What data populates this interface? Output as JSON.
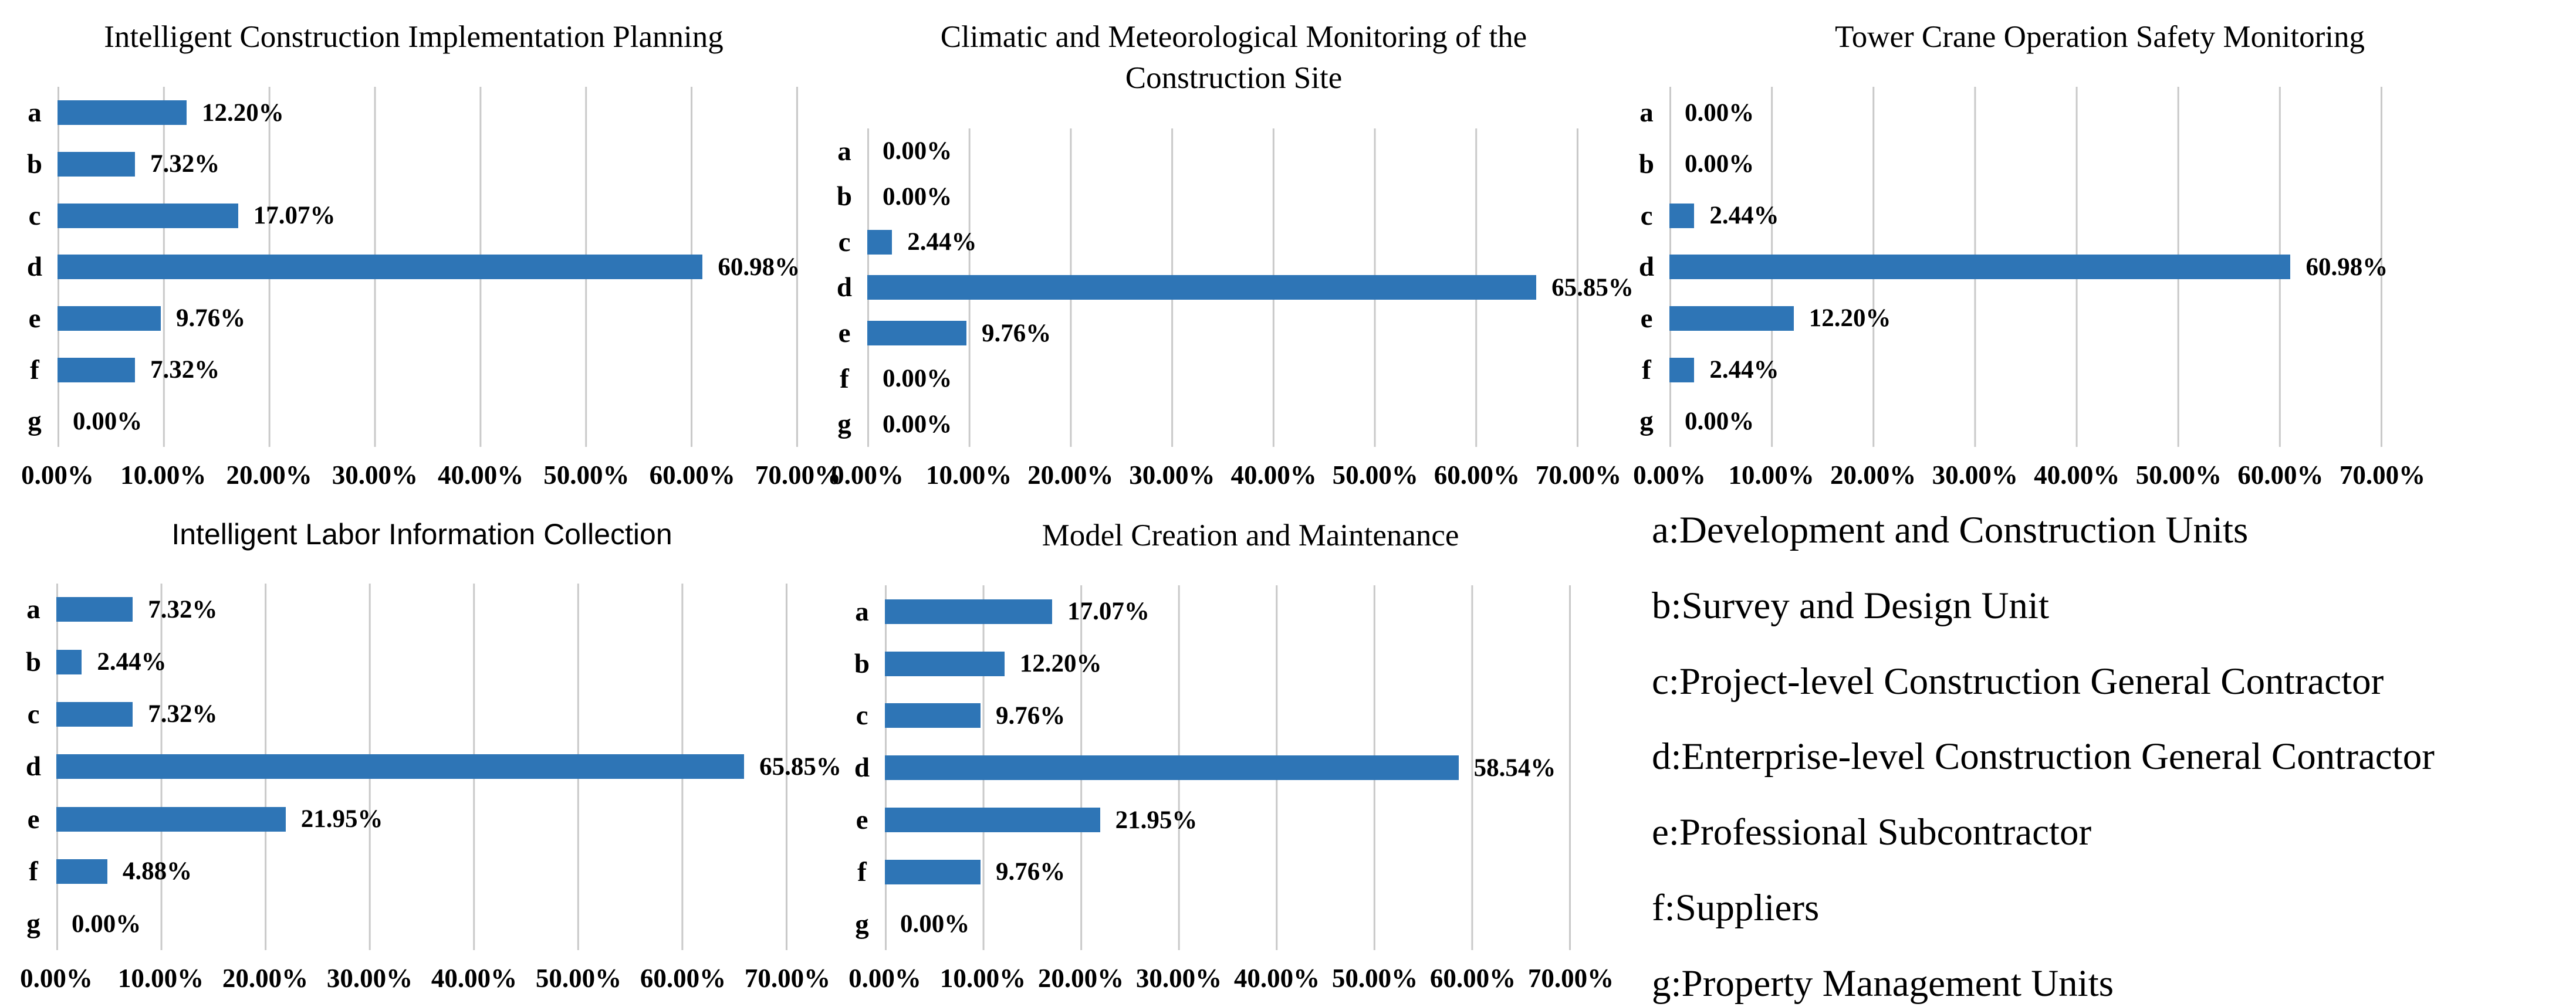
{
  "colors": {
    "bar": "#2E75B6",
    "gridline": "#C9C9C9",
    "text": "#000000",
    "background": "#FFFFFF"
  },
  "legend": {
    "items": [
      "a:Development and Construction Units",
      "b:Survey and Design Unit",
      "c:Project-level Construction General Contractor",
      "d:Enterprise-level Construction General Contractor",
      "e:Professional Subcontractor",
      "f:Suppliers",
      "g:Property Management Units"
    ]
  },
  "chart_data": [
    {
      "type": "bar",
      "orientation": "horizontal",
      "title": "Intelligent Construction Implementation Planning",
      "categories": [
        "a",
        "b",
        "c",
        "d",
        "e",
        "f",
        "g"
      ],
      "values": [
        12.2,
        7.32,
        17.07,
        60.98,
        9.76,
        7.32,
        0.0
      ],
      "value_labels": [
        "12.20%",
        "7.32%",
        "17.07%",
        "60.98%",
        "9.76%",
        "7.32%",
        "0.00%"
      ],
      "xlim": [
        0,
        70
      ],
      "x_tick_labels": [
        "0.00%",
        "10.00%",
        "20.00%",
        "30.00%",
        "40.00%",
        "50.00%",
        "60.00%",
        "70.00%"
      ],
      "grid": true,
      "legend_position": "none",
      "layout": {
        "title_font": "serif",
        "title_lines": [
          "Intelligent Construction Implementation Planning"
        ]
      }
    },
    {
      "type": "bar",
      "orientation": "horizontal",
      "title": "Climatic and Meteorological Monitoring of the Construction Site",
      "categories": [
        "a",
        "b",
        "c",
        "d",
        "e",
        "f",
        "g"
      ],
      "values": [
        0.0,
        0.0,
        2.44,
        65.85,
        9.76,
        0.0,
        0.0
      ],
      "value_labels": [
        "0.00%",
        "0.00%",
        "2.44%",
        "65.85%",
        "9.76%",
        "0.00%",
        "0.00%"
      ],
      "xlim": [
        0,
        70
      ],
      "x_tick_labels": [
        "0.00%",
        "10.00%",
        "20.00%",
        "30.00%",
        "40.00%",
        "50.00%",
        "60.00%",
        "70.00%"
      ],
      "grid": true,
      "legend_position": "none",
      "layout": {
        "title_font": "serif",
        "title_lines": [
          "Climatic and Meteorological Monitoring of the",
          "Construction Site"
        ]
      }
    },
    {
      "type": "bar",
      "orientation": "horizontal",
      "title": "Tower Crane Operation Safety Monitoring",
      "categories": [
        "a",
        "b",
        "c",
        "d",
        "e",
        "f",
        "g"
      ],
      "values": [
        0.0,
        0.0,
        2.44,
        60.98,
        12.2,
        2.44,
        0.0
      ],
      "value_labels": [
        "0.00%",
        "0.00%",
        "2.44%",
        "60.98%",
        "12.20%",
        "2.44%",
        "0.00%"
      ],
      "xlim": [
        0,
        70
      ],
      "x_tick_labels": [
        "0.00%",
        "10.00%",
        "20.00%",
        "30.00%",
        "40.00%",
        "50.00%",
        "60.00%",
        "70.00%"
      ],
      "grid": true,
      "legend_position": "none",
      "layout": {
        "title_font": "serif",
        "title_lines": [
          "Tower Crane Operation Safety Monitoring"
        ]
      }
    },
    {
      "type": "bar",
      "orientation": "horizontal",
      "title": "Intelligent Labor Information Collection",
      "categories": [
        "a",
        "b",
        "c",
        "d",
        "e",
        "f",
        "g"
      ],
      "values": [
        7.32,
        2.44,
        7.32,
        65.85,
        21.95,
        4.88,
        0.0
      ],
      "value_labels": [
        "7.32%",
        "2.44%",
        "7.32%",
        "65.85%",
        "21.95%",
        "4.88%",
        "0.00%"
      ],
      "xlim": [
        0,
        70
      ],
      "x_tick_labels": [
        "0.00%",
        "10.00%",
        "20.00%",
        "30.00%",
        "40.00%",
        "50.00%",
        "60.00%",
        "70.00%"
      ],
      "grid": true,
      "legend_position": "none",
      "layout": {
        "title_font": "sans",
        "title_lines": [
          "Intelligent Labor Information Collection"
        ]
      }
    },
    {
      "type": "bar",
      "orientation": "horizontal",
      "title": "Model Creation and Maintenance",
      "categories": [
        "a",
        "b",
        "c",
        "d",
        "e",
        "f",
        "g"
      ],
      "values": [
        17.07,
        12.2,
        9.76,
        58.54,
        21.95,
        9.76,
        0.0
      ],
      "value_labels": [
        "17.07%",
        "12.20%",
        "9.76%",
        "58.54%",
        "21.95%",
        "9.76%",
        "0.00%"
      ],
      "xlim": [
        0,
        70
      ],
      "x_tick_labels": [
        "0.00%",
        "10.00%",
        "20.00%",
        "30.00%",
        "40.00%",
        "50.00%",
        "60.00%",
        "70.00%"
      ],
      "grid": true,
      "legend_position": "none",
      "layout": {
        "title_font": "serif",
        "title_lines": [
          "Model Creation and Maintenance"
        ]
      }
    }
  ]
}
